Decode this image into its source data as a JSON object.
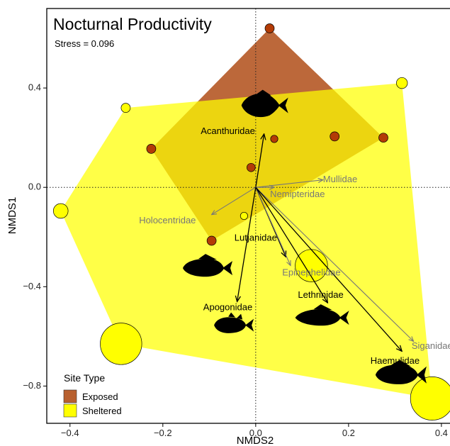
{
  "chart_data": {
    "type": "scatter",
    "title": "Nocturnal Productivity",
    "annotation": "Stress = 0.096",
    "xlabel": "NMDS2",
    "ylabel": "NMDS1",
    "xlim": [
      -0.45,
      0.42
    ],
    "ylim": [
      -0.95,
      0.72
    ],
    "x_ticks": [
      -0.4,
      -0.2,
      0.0,
      0.2,
      0.4
    ],
    "x_tick_labels": [
      "-0.4",
      "-0.2",
      "0.0",
      "0.2",
      "0.4"
    ],
    "y_ticks": [
      -0.8,
      -0.4,
      0.0,
      0.4
    ],
    "y_tick_labels": [
      "-0.8",
      "-0.4",
      "0.0",
      "0.4"
    ],
    "grid": false,
    "reference_lines": "dotted lines at x = 0 and y = 0",
    "legend": {
      "title": "Site Type",
      "placement": "bottom-left",
      "entries": [
        {
          "label": "Exposed",
          "color": "#b8602f"
        },
        {
          "label": "Sheltered",
          "color": "#ffff00"
        }
      ]
    },
    "series": [
      {
        "name": "Exposed",
        "point_color": "#b33b06",
        "hull_color": "#b8602f",
        "points": [
          {
            "x": 0.03,
            "y": 0.64,
            "size": 1
          },
          {
            "x": 0.17,
            "y": 0.205,
            "size": 1
          },
          {
            "x": 0.275,
            "y": 0.2,
            "size": 1
          },
          {
            "x": 0.04,
            "y": 0.195,
            "size": 0.8
          },
          {
            "x": -0.225,
            "y": 0.155,
            "size": 1
          },
          {
            "x": -0.01,
            "y": 0.08,
            "size": 0.9
          },
          {
            "x": -0.095,
            "y": -0.215,
            "size": 1
          }
        ]
      },
      {
        "name": "Sheltered",
        "point_color": "#ffff00",
        "hull_color": "#ffff00",
        "points": [
          {
            "x": -0.28,
            "y": 0.32,
            "size": 1
          },
          {
            "x": 0.315,
            "y": 0.42,
            "size": 1.2
          },
          {
            "x": -0.42,
            "y": -0.095,
            "size": 1.6
          },
          {
            "x": -0.025,
            "y": -0.115,
            "size": 0.8
          },
          {
            "x": 0.12,
            "y": -0.315,
            "size": 3.5
          },
          {
            "x": -0.29,
            "y": -0.63,
            "size": 4.5
          },
          {
            "x": 0.38,
            "y": -0.85,
            "size": 4.7
          }
        ]
      }
    ],
    "vectors": [
      {
        "label": "Acanthuridae",
        "x": 0.018,
        "y": 0.215,
        "emphasis": "dark",
        "label_x": -0.06,
        "label_y": 0.225
      },
      {
        "label": "Mullidae",
        "x": 0.145,
        "y": 0.03,
        "emphasis": "light",
        "label_x": 0.145,
        "label_y": 0.03
      },
      {
        "label": "Nemipteridae",
        "x": 0.04,
        "y": 0.0,
        "emphasis": "light",
        "label_x": 0.09,
        "label_y": -0.03
      },
      {
        "label": "Holocentridae",
        "x": -0.095,
        "y": -0.11,
        "emphasis": "light",
        "label_x": -0.19,
        "label_y": -0.135
      },
      {
        "label": "Lutjanidae",
        "x": 0.065,
        "y": -0.28,
        "emphasis": "dark",
        "label_x": 0.0,
        "label_y": -0.205
      },
      {
        "label": "Epinephelidae",
        "x": 0.075,
        "y": -0.315,
        "emphasis": "light",
        "label_x": 0.12,
        "label_y": -0.345
      },
      {
        "label": "Apogonidae",
        "x": -0.04,
        "y": -0.46,
        "emphasis": "dark",
        "label_x": -0.06,
        "label_y": -0.485
      },
      {
        "label": "Lethrinidae",
        "x": 0.155,
        "y": -0.465,
        "emphasis": "dark",
        "label_x": 0.14,
        "label_y": -0.435
      },
      {
        "label": "Siganidae",
        "x": 0.34,
        "y": -0.62,
        "emphasis": "light",
        "label_x": 0.38,
        "label_y": -0.64
      },
      {
        "label": "Haemulidae",
        "x": 0.315,
        "y": -0.66,
        "emphasis": "dark",
        "label_x": 0.3,
        "label_y": -0.7
      }
    ],
    "fish_silhouettes": [
      {
        "family": "Acanthuridae",
        "shape": "surgeonfish",
        "x": 0.015,
        "y": 0.33
      },
      {
        "family": "Lutjanidae",
        "shape": "grouper",
        "x": -0.105,
        "y": -0.325
      },
      {
        "family": "Apogonidae",
        "shape": "cardinalfish",
        "x": -0.05,
        "y": -0.555
      },
      {
        "family": "Lethrinidae",
        "shape": "emperor",
        "x": 0.14,
        "y": -0.525
      },
      {
        "family": "Haemulidae",
        "shape": "grunt",
        "x": 0.31,
        "y": -0.755
      }
    ],
    "colors": {
      "dark_vector": "#000000",
      "light_vector": "#777777"
    }
  }
}
